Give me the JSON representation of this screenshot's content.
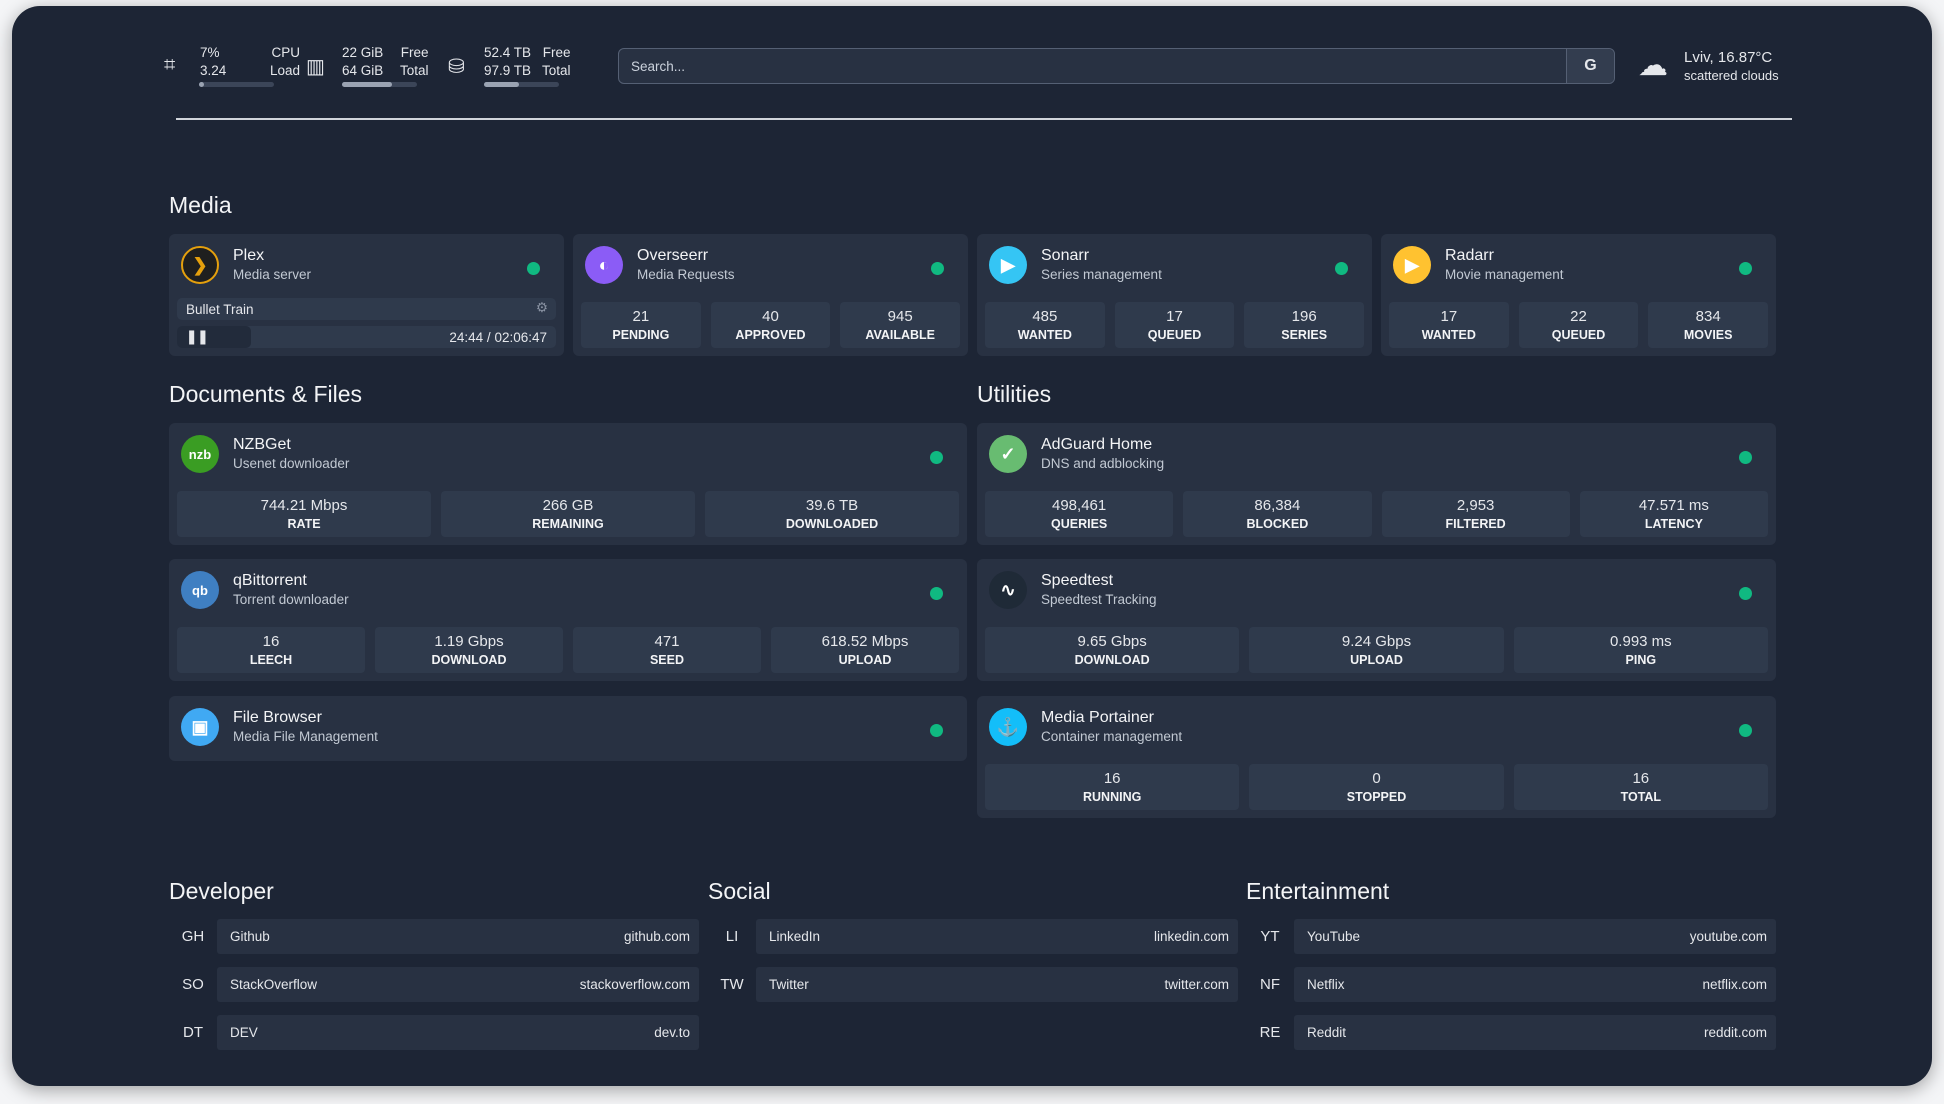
{
  "topbar": {
    "cpu": {
      "icon": "cpu-icon",
      "v1": "7%",
      "v2": "3.24",
      "l1": "CPU",
      "l2": "Load",
      "usage_percent": 7
    },
    "ram": {
      "icon": "memory-icon",
      "v1": "22 GiB",
      "v2": "64 GiB",
      "l1": "Free",
      "l2": "Total",
      "usage_percent": 66
    },
    "disk": {
      "icon": "hard-drive-icon",
      "v1": "52.4 TB",
      "v2": "97.9 TB",
      "l1": "Free",
      "l2": "Total",
      "usage_percent": 46
    },
    "search": {
      "placeholder": "Search...",
      "button": "G"
    },
    "weather": {
      "icon": "cloud-icon",
      "location": "Lviv, 16.87°C",
      "desc": "scattered clouds"
    }
  },
  "sections": {
    "media": "Media",
    "docs": "Documents & Files",
    "utilities": "Utilities",
    "developer": "Developer",
    "social": "Social",
    "entertainment": "Entertainment"
  },
  "plex": {
    "name": "Plex",
    "sub": "Media server",
    "title": "Bullet Train",
    "time": "24:44",
    "total": "02:06:47",
    "progress_percent": 19.5
  },
  "media": [
    {
      "name": "Overseerr",
      "sub": "Media Requests",
      "color": "#8b5cf6",
      "glyph": "◐",
      "stats": [
        [
          "21",
          "PENDING"
        ],
        [
          "40",
          "APPROVED"
        ],
        [
          "945",
          "AVAILABLE"
        ]
      ]
    },
    {
      "name": "Sonarr",
      "sub": "Series management",
      "color": "#35c5f4",
      "glyph": "▶",
      "stats": [
        [
          "485",
          "WANTED"
        ],
        [
          "17",
          "QUEUED"
        ],
        [
          "196",
          "SERIES"
        ]
      ]
    },
    {
      "name": "Radarr",
      "sub": "Movie management",
      "color": "#ffc230",
      "glyph": "▶",
      "stats": [
        [
          "17",
          "WANTED"
        ],
        [
          "22",
          "QUEUED"
        ],
        [
          "834",
          "MOVIES"
        ]
      ]
    }
  ],
  "docs": [
    {
      "name": "NZBGet",
      "sub": "Usenet downloader",
      "color": "#3a9d23",
      "glyph": "nzb",
      "stats": [
        [
          "744.21 Mbps",
          "RATE"
        ],
        [
          "266 GB",
          "REMAINING"
        ],
        [
          "39.6 TB",
          "DOWNLOADED"
        ]
      ]
    },
    {
      "name": "qBittorrent",
      "sub": "Torrent downloader",
      "color": "#3f7fc2",
      "glyph": "qb",
      "stats": [
        [
          "16",
          "LEECH"
        ],
        [
          "1.19 Gbps",
          "DOWNLOAD"
        ],
        [
          "471",
          "SEED"
        ],
        [
          "618.52 Mbps",
          "UPLOAD"
        ]
      ]
    },
    {
      "name": "File Browser",
      "sub": "Media File Management",
      "color": "#40a9f3",
      "glyph": "▣",
      "stats": []
    }
  ],
  "utils": [
    {
      "name": "AdGuard Home",
      "sub": "DNS and adblocking",
      "color": "#68bc71",
      "glyph": "✓",
      "stats": [
        [
          "498,461",
          "QUERIES"
        ],
        [
          "86,384",
          "BLOCKED"
        ],
        [
          "2,953",
          "FILTERED"
        ],
        [
          "47.571 ms",
          "LATENCY"
        ]
      ]
    },
    {
      "name": "Speedtest",
      "sub": "Speedtest Tracking",
      "color": "#1f2a37",
      "glyph": "∿",
      "stats": [
        [
          "9.65 Gbps",
          "DOWNLOAD"
        ],
        [
          "9.24 Gbps",
          "UPLOAD"
        ],
        [
          "0.993 ms",
          "PING"
        ]
      ]
    },
    {
      "name": "Media Portainer",
      "sub": "Container management",
      "color": "#13bef9",
      "glyph": "⚓",
      "stats": [
        [
          "16",
          "RUNNING"
        ],
        [
          "0",
          "STOPPED"
        ],
        [
          "16",
          "TOTAL"
        ]
      ]
    }
  ],
  "bookmarks": {
    "developer": [
      [
        "GH",
        "Github",
        "github.com"
      ],
      [
        "SO",
        "StackOverflow",
        "stackoverflow.com"
      ],
      [
        "DT",
        "DEV",
        "dev.to"
      ]
    ],
    "social": [
      [
        "LI",
        "LinkedIn",
        "linkedin.com"
      ],
      [
        "TW",
        "Twitter",
        "twitter.com"
      ]
    ],
    "entertainment": [
      [
        "YT",
        "YouTube",
        "youtube.com"
      ],
      [
        "NF",
        "Netflix",
        "netflix.com"
      ],
      [
        "RE",
        "Reddit",
        "reddit.com"
      ]
    ]
  },
  "colors": {
    "status_up": "#10b981",
    "background": "#1d2535",
    "card": "#283142"
  }
}
